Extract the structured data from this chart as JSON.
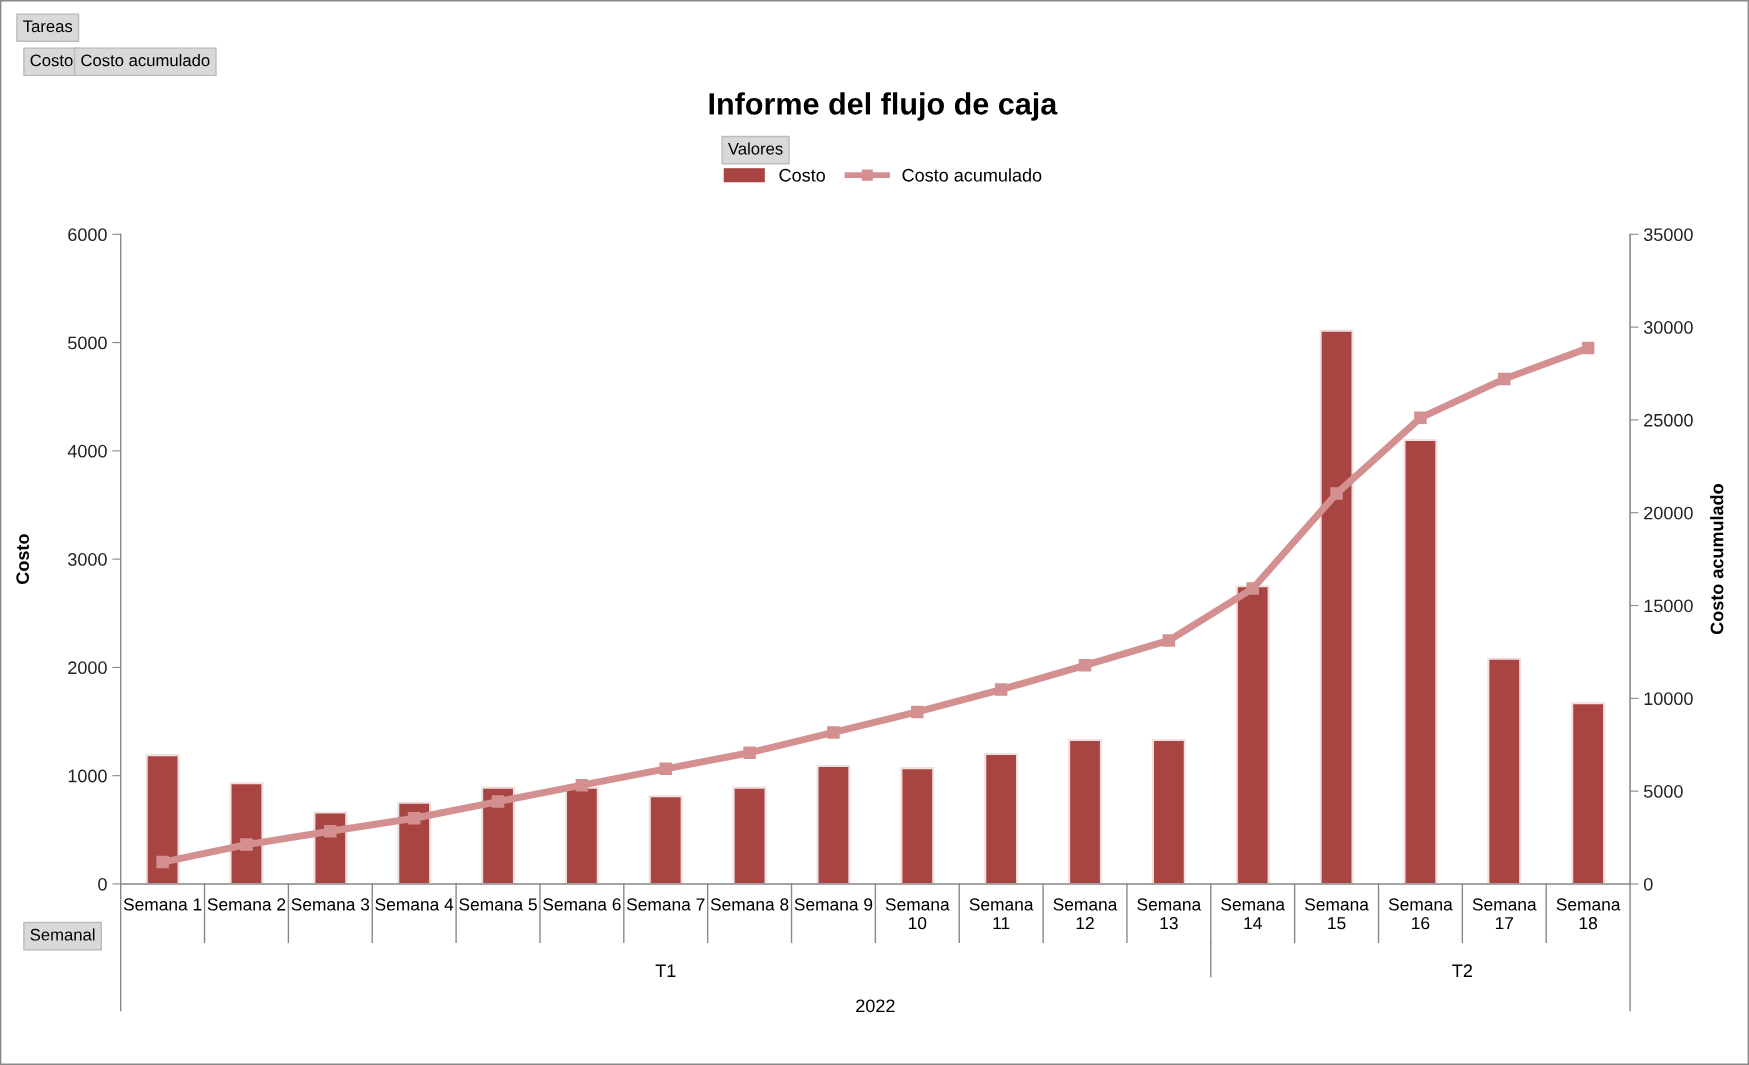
{
  "chart_data": {
    "type": "bar",
    "title": "Informe del flujo de caja",
    "ylabel": "Costo",
    "y2label": "Costo acumulado",
    "legend_title": "Valores",
    "categories": [
      "Semana 1",
      "Semana 2",
      "Semana 3",
      "Semana 4",
      "Semana 5",
      "Semana 6",
      "Semana 7",
      "Semana 8",
      "Semana 9",
      "Semana 10",
      "Semana 11",
      "Semana 12",
      "Semana 13",
      "Semana 14",
      "Semana 15",
      "Semana 16",
      "Semana 17",
      "Semana 18"
    ],
    "series": [
      {
        "name": "Costo",
        "color": "#a84543",
        "values": [
          1190,
          930,
          660,
          750,
          890,
          890,
          810,
          890,
          1090,
          1070,
          1200,
          1330,
          1330,
          2750,
          5110,
          4100,
          2080,
          1670
        ]
      },
      {
        "name": "Costo acumulado",
        "type": "line",
        "axis": "y2",
        "color": "#d49090",
        "marker": "square",
        "values": [
          1180,
          2120,
          2840,
          3540,
          4440,
          5320,
          6200,
          7070,
          8160,
          9270,
          10470,
          11780,
          13120,
          15920,
          21030,
          25110,
          27210,
          28870
        ]
      }
    ],
    "ylim": [
      0,
      6000
    ],
    "yticks": [
      0,
      1000,
      2000,
      3000,
      4000,
      5000,
      6000
    ],
    "y2lim": [
      0,
      35000
    ],
    "y2ticks": [
      0,
      5000,
      10000,
      15000,
      20000,
      25000,
      30000,
      35000
    ],
    "grid": false,
    "legend": "top",
    "annotations": [
      "Tareas",
      "Costo",
      "Costo acumulado",
      "T1",
      "T2",
      "2022",
      "Semanal"
    ]
  }
}
